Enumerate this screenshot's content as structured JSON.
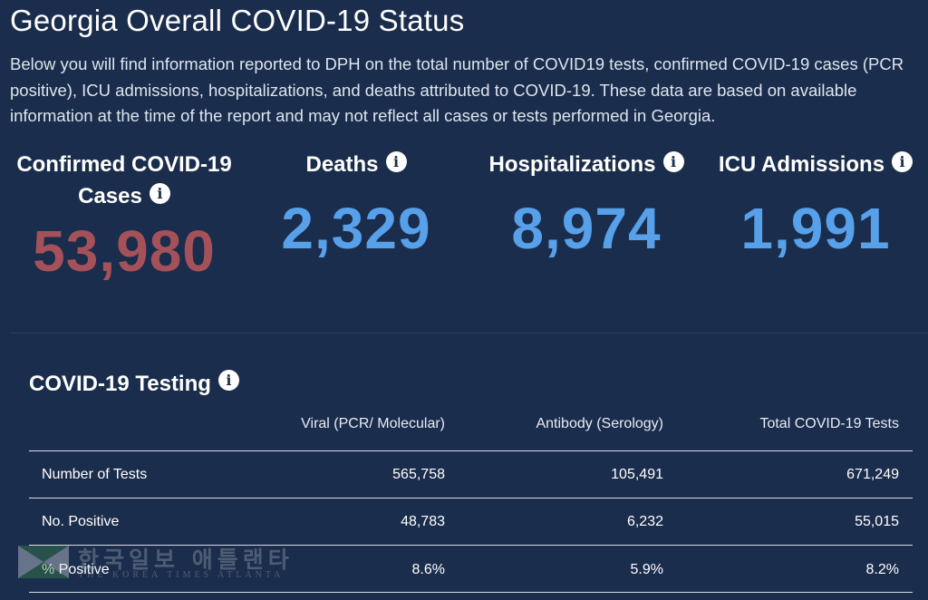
{
  "page": {
    "title": "Georgia Overall COVID-19 Status",
    "intro": "Below you will find information reported to DPH on the total number of COVID19 tests, confirmed COVID-19 cases (PCR positive), ICU admissions, hospitalizations, and deaths attributed to COVID-19. These data are based on available information at the time of the report and may not reflect all cases or tests performed in Georgia."
  },
  "stats": {
    "cases": {
      "label": "Confirmed COVID-19 Cases",
      "value": "53,980"
    },
    "deaths": {
      "label": "Deaths",
      "value": "2,329"
    },
    "hospitalizations": {
      "label": "Hospitalizations",
      "value": "8,974"
    },
    "icu": {
      "label": "ICU Admissions",
      "value": "1,991"
    }
  },
  "info_icon": {
    "glyph": "i",
    "icon_name": "info-icon"
  },
  "testing": {
    "title": "COVID-19 Testing",
    "columns": [
      "Viral (PCR/ Molecular)",
      "Antibody (Serology)",
      "Total COVID-19 Tests"
    ],
    "rows": [
      {
        "label": "Number of Tests",
        "values": [
          "565,758",
          "105,491",
          "671,249"
        ]
      },
      {
        "label": "No. Positive",
        "values": [
          "48,783",
          "6,232",
          "55,015"
        ]
      },
      {
        "label": "% Positive",
        "values": [
          "8.6%",
          "5.9%",
          "8.2%"
        ]
      }
    ]
  },
  "watermark": {
    "korean": "한국일보 애틀랜타",
    "english": "THE KOREA TIMES ATLANTA"
  },
  "colors": {
    "background": "#1b2d4c",
    "cases_value": "#a5515a",
    "metric_value": "#57a0ea",
    "text": "#ffffff"
  }
}
